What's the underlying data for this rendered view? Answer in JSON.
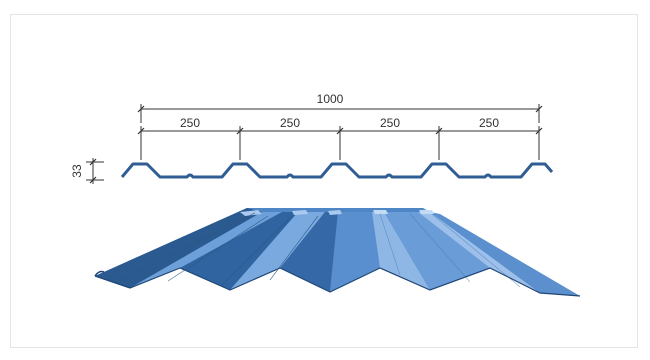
{
  "profile": {
    "total_width": "1000",
    "pitch_labels": [
      "250",
      "250",
      "250",
      "250"
    ],
    "height_label": "33"
  },
  "colors": {
    "profile_line": "#2f5d94",
    "sheet_top": "#4f86c6",
    "sheet_light": "#8fb7e6",
    "sheet_dark": "#2a5a8f",
    "dimension_line": "#333333"
  }
}
